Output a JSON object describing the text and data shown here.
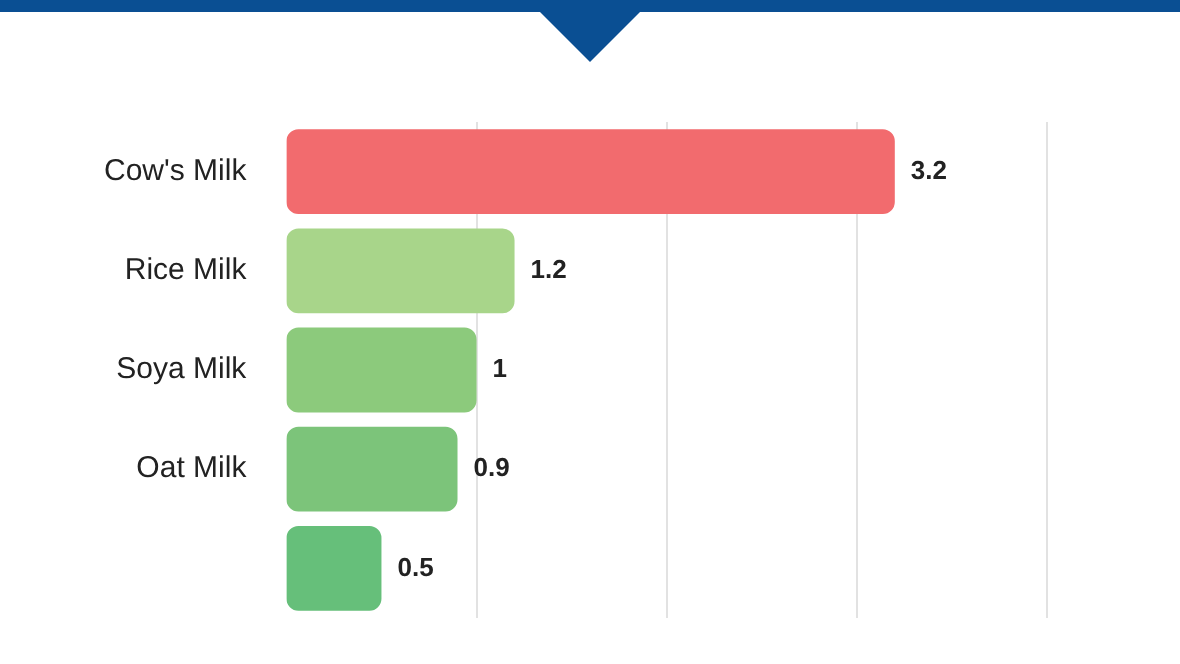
{
  "chart_data": {
    "type": "bar",
    "orientation": "horizontal",
    "categories": [
      "Cow's Milk",
      "Rice Milk",
      "Soya Milk",
      "Oat Milk",
      null
    ],
    "values": [
      3.2,
      1.2,
      1,
      0.9,
      0.5
    ],
    "colors": [
      "#f26b6e",
      "#a8d58a",
      "#8cca7c",
      "#7cc47a",
      "#66bf7a"
    ],
    "xlim": [
      0,
      4.7
    ],
    "xticks": [
      {
        "value": 1,
        "label": null
      },
      {
        "value": 2,
        "label": null
      },
      {
        "value": 3,
        "label": null
      },
      {
        "value": 4,
        "label": null
      }
    ],
    "grid": "x",
    "tick_labels": "y",
    "data_labels": true
  }
}
